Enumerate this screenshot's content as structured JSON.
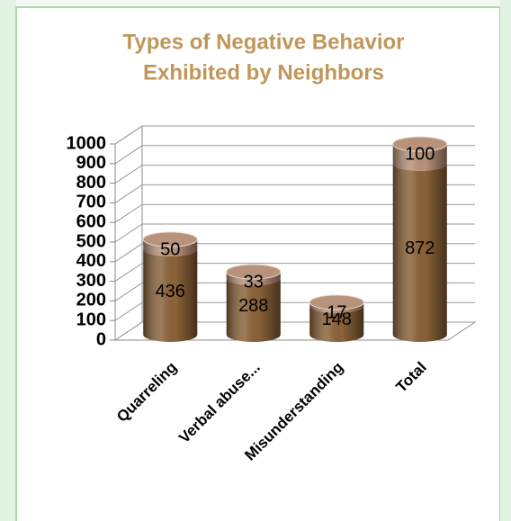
{
  "chart_data": {
    "type": "bar3d-stacked",
    "title": [
      "Types of Negative Behavior",
      "Exhibited by Neighbors"
    ],
    "categories": [
      "Quarreling",
      "Verbal abuse...",
      "Misunderstanding",
      "Total"
    ],
    "series": [
      {
        "color": "#8a6238",
        "values": [
          436,
          288,
          148,
          872
        ]
      },
      {
        "color": "#b8927a",
        "values": [
          50,
          33,
          17,
          100
        ]
      }
    ],
    "ylim": [
      0,
      1000
    ],
    "yticks": [
      0,
      100,
      200,
      300,
      400,
      500,
      600,
      700,
      800,
      900,
      1000
    ],
    "grid": true
  }
}
